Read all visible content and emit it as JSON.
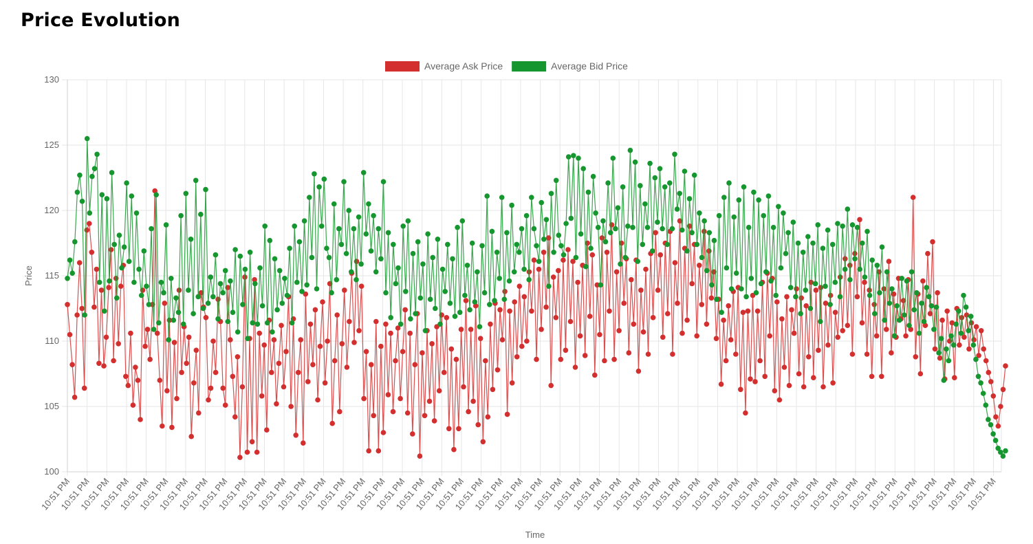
{
  "page": {
    "title": "Price Evolution"
  },
  "chart_data": {
    "type": "line",
    "title": "",
    "xlabel": "Time",
    "ylabel": "Price",
    "ylim": [
      100,
      130
    ],
    "y_ticks": [
      100,
      105,
      110,
      115,
      120,
      125,
      130
    ],
    "x_tick_labels": [
      "10:51 PM",
      "10:51 PM",
      "10:51 PM",
      "10:51 PM",
      "10:51 PM",
      "10:51 PM",
      "10:51 PM",
      "10:51 PM",
      "10:51 PM",
      "10:51 PM",
      "10:51 PM",
      "10:51 PM",
      "10:51 PM",
      "10:51 PM",
      "10:51 PM",
      "10:51 PM",
      "10:51 PM",
      "10:51 PM",
      "10:51 PM",
      "10:51 PM",
      "10:51 PM",
      "10:51 PM",
      "10:51 PM",
      "10:51 PM",
      "10:51 PM",
      "10:51 PM",
      "10:51 PM",
      "10:51 PM",
      "10:51 PM",
      "10:51 PM",
      "10:51 PM",
      "10:51 PM",
      "10:51 PM",
      "10:51 PM",
      "10:51 PM",
      "10:51 PM",
      "10:51 PM",
      "10:51 PM",
      "10:51 PM",
      "10:51 PM",
      "10:51 PM",
      "10:51 PM",
      "10:51 PM",
      "10:51 PM",
      "10:51 PM",
      "10:51 PM",
      "10:51 PM",
      "10:51 PM"
    ],
    "grid": true,
    "legend_position": "top-center",
    "series": [
      {
        "name": "Average Ask Price",
        "color": "#d32f2f",
        "values": [
          112.8,
          110.5,
          108.2,
          105.7,
          112.0,
          116.0,
          112.5,
          106.4,
          118.5,
          119.0,
          116.8,
          112.6,
          115.5,
          108.3,
          113.9,
          108.1,
          110.3,
          114.1,
          117.0,
          108.5,
          114.8,
          109.8,
          114.2,
          115.8,
          107.3,
          106.6,
          110.6,
          105.1,
          108.0,
          107.0,
          104.0,
          113.9,
          109.6,
          110.9,
          108.6,
          112.8,
          121.5,
          110.6,
          107.0,
          103.5,
          112.9,
          106.2,
          111.6,
          103.4,
          109.9,
          105.6,
          113.9,
          107.6,
          111.1,
          108.3,
          110.3,
          102.7,
          106.8,
          109.3,
          104.5,
          113.7,
          112.6,
          111.8,
          105.5,
          106.4,
          110.0,
          107.6,
          113.2,
          111.5,
          106.4,
          105.1,
          114.1,
          110.1,
          107.3,
          104.2,
          108.8,
          101.1,
          106.5,
          114.9,
          101.5,
          110.2,
          102.3,
          114.7,
          101.5,
          110.6,
          105.8,
          109.7,
          103.2,
          111.6,
          107.6,
          110.1,
          105.2,
          108.3,
          111.2,
          106.5,
          109.2,
          113.4,
          105.0,
          111.7,
          102.8,
          107.6,
          110.1,
          102.2,
          113.6,
          106.9,
          111.3,
          108.2,
          112.4,
          105.5,
          109.6,
          113.0,
          106.8,
          110.0,
          114.4,
          103.7,
          108.5,
          112.0,
          104.6,
          109.8,
          113.9,
          108.0,
          111.5,
          115.2,
          109.9,
          116.1,
          110.8,
          114.2,
          105.6,
          109.2,
          101.6,
          108.2,
          104.3,
          111.5,
          101.6,
          109.6,
          103.0,
          111.3,
          105.9,
          110.6,
          104.6,
          108.5,
          111.0,
          105.6,
          109.2,
          112.4,
          104.5,
          110.6,
          102.9,
          108.2,
          112.1,
          101.2,
          109.1,
          104.3,
          110.8,
          105.4,
          109.8,
          103.9,
          111.1,
          106.2,
          112.0,
          107.6,
          111.8,
          103.3,
          109.4,
          101.7,
          108.6,
          103.3,
          110.9,
          106.5,
          113.1,
          104.6,
          110.9,
          105.4,
          112.7,
          103.6,
          110.2,
          102.3,
          108.5,
          104.2,
          111.3,
          106.3,
          112.9,
          107.8,
          112.4,
          110.1,
          113.8,
          104.4,
          112.3,
          106.8,
          113.0,
          108.8,
          114.2,
          109.6,
          113.4,
          110.0,
          115.3,
          112.3,
          116.2,
          108.6,
          115.5,
          110.9,
          116.8,
          112.6,
          117.9,
          106.6,
          114.9,
          111.8,
          115.4,
          108.6,
          116.2,
          109.3,
          117.0,
          111.5,
          116.1,
          108.0,
          114.5,
          110.4,
          115.8,
          108.9,
          117.5,
          111.9,
          116.6,
          107.4,
          114.3,
          110.5,
          117.9,
          108.5,
          116.8,
          112.3,
          118.9,
          108.6,
          115.3,
          110.8,
          117.5,
          112.9,
          116.3,
          109.1,
          114.7,
          111.3,
          116.2,
          107.7,
          113.9,
          110.7,
          115.5,
          109.0,
          116.7,
          111.8,
          118.3,
          113.9,
          116.6,
          110.3,
          117.5,
          112.1,
          118.4,
          109.0,
          116.0,
          112.9,
          119.2,
          110.6,
          117.1,
          111.6,
          118.8,
          114.4,
          117.4,
          110.4,
          115.8,
          112.8,
          118.4,
          111.3,
          116.9,
          113.3,
          115.3,
          110.2,
          113.2,
          106.7,
          111.6,
          108.5,
          112.7,
          110.1,
          113.8,
          109.0,
          114.1,
          106.3,
          112.2,
          104.5,
          112.3,
          107.1,
          113.5,
          106.9,
          112.3,
          108.5,
          114.5,
          107.3,
          115.2,
          110.4,
          114.8,
          106.2,
          113.0,
          105.5,
          111.7,
          108.0,
          113.4,
          106.6,
          112.4,
          110.6,
          114.0,
          107.5,
          113.3,
          106.5,
          112.7,
          108.8,
          114.5,
          107.2,
          113.9,
          109.3,
          114.1,
          106.5,
          112.9,
          109.7,
          113.5,
          106.8,
          112.2,
          110.3,
          114.9,
          110.8,
          116.3,
          111.2,
          115.8,
          109.0,
          116.7,
          113.4,
          119.3,
          111.4,
          114.5,
          109.0,
          113.9,
          107.3,
          112.8,
          110.4,
          115.3,
          107.3,
          114.0,
          110.9,
          116.1,
          109.1,
          113.6,
          110.3,
          114.8,
          111.7,
          113.1,
          110.4,
          114.7,
          110.9,
          121.0,
          108.8,
          113.6,
          107.5,
          114.6,
          111.2,
          116.7,
          112.1,
          117.6,
          109.4,
          113.7,
          108.7,
          111.6,
          107.1,
          112.3,
          110.0,
          111.4,
          107.2,
          112.5,
          109.7,
          111.8,
          110.3,
          112.0,
          109.4,
          111.4,
          110.1,
          111.1,
          108.9,
          110.8,
          109.4,
          108.5,
          107.6,
          106.9,
          105.8,
          104.2,
          103.5,
          105.0,
          106.3,
          108.1
        ]
      },
      {
        "name": "Average Bid Price",
        "color": "#16962e",
        "values": [
          114.8,
          116.2,
          115.2,
          117.6,
          121.4,
          122.7,
          120.7,
          112.0,
          125.5,
          119.8,
          122.6,
          123.2,
          124.3,
          114.5,
          121.2,
          112.3,
          120.9,
          114.6,
          122.9,
          117.4,
          113.3,
          118.1,
          115.6,
          117.2,
          122.1,
          116.1,
          121.1,
          114.5,
          119.8,
          115.5,
          113.5,
          116.9,
          114.2,
          112.8,
          118.6,
          110.9,
          121.2,
          111.4,
          114.5,
          113.7,
          118.9,
          110.1,
          114.8,
          111.6,
          113.3,
          112.2,
          119.6,
          111.3,
          121.3,
          113.9,
          117.8,
          112.1,
          122.3,
          113.4,
          119.7,
          112.5,
          121.6,
          112.9,
          114.9,
          113.4,
          116.6,
          111.7,
          114.4,
          113.7,
          115.4,
          111.5,
          114.6,
          112.2,
          117.0,
          110.7,
          116.5,
          112.8,
          115.5,
          110.2,
          116.8,
          111.4,
          114.4,
          111.3,
          115.6,
          112.7,
          118.8,
          111.4,
          117.7,
          110.7,
          116.3,
          112.4,
          115.4,
          112.9,
          114.8,
          113.5,
          117.1,
          111.4,
          118.8,
          114.5,
          117.6,
          113.8,
          119.2,
          114.3,
          121.0,
          116.4,
          122.8,
          114.0,
          121.8,
          118.8,
          122.4,
          117.1,
          116.4,
          113.7,
          120.5,
          114.7,
          118.6,
          117.4,
          122.2,
          116.7,
          120.0,
          115.3,
          118.6,
          114.7,
          119.5,
          115.9,
          122.9,
          118.2,
          120.5,
          116.9,
          119.6,
          115.3,
          118.6,
          116.3,
          122.2,
          113.7,
          118.3,
          111.8,
          117.4,
          114.4,
          115.6,
          111.3,
          118.8,
          113.8,
          119.2,
          111.7,
          116.7,
          112.1,
          117.6,
          113.3,
          115.9,
          110.8,
          118.2,
          113.2,
          116.4,
          112.5,
          117.8,
          111.3,
          115.5,
          113.8,
          117.4,
          112.9,
          116.3,
          111.9,
          118.7,
          112.2,
          119.2,
          113.5,
          115.8,
          112.4,
          117.5,
          113.0,
          115.3,
          111.1,
          117.3,
          113.7,
          121.1,
          112.8,
          118.4,
          113.1,
          116.8,
          114.8,
          121.0,
          113.2,
          118.3,
          114.6,
          120.4,
          115.3,
          117.4,
          116.8,
          118.6,
          115.5,
          119.6,
          114.7,
          121.0,
          118.6,
          117.3,
          116.1,
          120.6,
          117.8,
          119.3,
          114.2,
          121.3,
          116.8,
          122.3,
          118.1,
          117.3,
          116.6,
          119.0,
          124.1,
          119.4,
          124.2,
          116.4,
          124.0,
          118.2,
          123.2,
          115.7,
          121.4,
          117.1,
          122.6,
          119.8,
          118.7,
          114.3,
          119.2,
          117.6,
          122.1,
          118.3,
          124.0,
          118.6,
          120.2,
          115.9,
          121.8,
          116.4,
          118.8,
          124.6,
          118.7,
          123.7,
          116.1,
          121.9,
          117.4,
          120.5,
          118.7,
          123.6,
          116.9,
          122.5,
          119.1,
          123.2,
          118.6,
          121.8,
          117.4,
          122.1,
          118.6,
          124.3,
          120.1,
          121.3,
          118.5,
          123.0,
          116.9,
          120.9,
          118.3,
          122.7,
          117.4,
          119.8,
          116.4,
          119.2,
          115.4,
          118.3,
          114.3,
          117.7,
          113.2,
          119.6,
          112.2,
          121.0,
          115.6,
          122.1,
          114.0,
          119.5,
          115.2,
          120.8,
          114.0,
          121.8,
          113.4,
          118.7,
          114.8,
          121.4,
          113.7,
          120.8,
          114.4,
          119.6,
          115.3,
          121.1,
          114.6,
          118.7,
          113.5,
          120.3,
          115.6,
          119.8,
          116.7,
          118.3,
          114.1,
          119.1,
          113.4,
          117.5,
          112.1,
          116.8,
          113.9,
          118.0,
          112.5,
          117.5,
          114.4,
          118.9,
          111.5,
          117.1,
          114.2,
          118.5,
          112.8,
          117.4,
          114.5,
          119.0,
          113.4,
          118.8,
          115.5,
          120.1,
          114.7,
          118.9,
          116.3,
          118.7,
          115.5,
          117.5,
          114.9,
          118.4,
          113.5,
          116.2,
          112.1,
          115.8,
          113.7,
          117.2,
          111.6,
          115.3,
          112.9,
          114.0,
          110.4,
          112.7,
          111.6,
          114.8,
          112.0,
          114.6,
          111.2,
          115.3,
          112.4,
          113.7,
          110.6,
          112.9,
          111.5,
          114.1,
          113.4,
          112.7,
          110.9,
          112.6,
          109.1,
          110.2,
          107.0,
          109.4,
          108.5,
          110.4,
          109.7,
          111.3,
          112.3,
          110.6,
          113.5,
          112.6,
          110.8,
          111.9,
          109.7,
          108.6,
          107.3,
          106.8,
          106.0,
          105.1,
          104.0,
          103.6,
          102.9,
          102.4,
          101.8,
          101.5,
          101.2,
          101.6
        ]
      }
    ]
  }
}
